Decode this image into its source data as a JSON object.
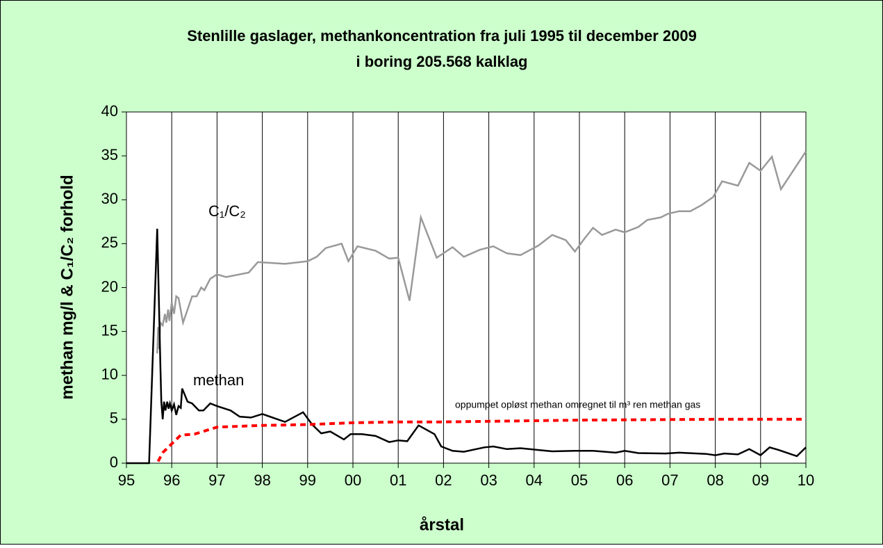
{
  "chart_data": {
    "type": "line",
    "title": [
      "Stenlille gaslager, methankoncentration fra juli 1995 til december 2009",
      "i boring 205.568 kalklag"
    ],
    "xlabel": "årstal",
    "ylabel": "methan mg/l & C₁/C₂ forhold",
    "xlim": [
      1995,
      2010
    ],
    "xticks": [
      {
        "value": 1995,
        "label": "95"
      },
      {
        "value": 1996,
        "label": "96"
      },
      {
        "value": 1997,
        "label": "97"
      },
      {
        "value": 1998,
        "label": "98"
      },
      {
        "value": 1999,
        "label": "99"
      },
      {
        "value": 2000,
        "label": "00"
      },
      {
        "value": 2001,
        "label": "01"
      },
      {
        "value": 2002,
        "label": "02"
      },
      {
        "value": 2003,
        "label": "03"
      },
      {
        "value": 2004,
        "label": "04"
      },
      {
        "value": 2005,
        "label": "05"
      },
      {
        "value": 2006,
        "label": "06"
      },
      {
        "value": 2007,
        "label": "07"
      },
      {
        "value": 2008,
        "label": "08"
      },
      {
        "value": 2009,
        "label": "09"
      },
      {
        "value": 2010,
        "label": "10"
      }
    ],
    "ylim": [
      0,
      40
    ],
    "yticks": [
      0,
      5,
      10,
      15,
      20,
      25,
      30,
      35,
      40
    ],
    "xgrid": true,
    "series": [
      {
        "name": "C₁/C₂",
        "color": "#999999",
        "dashed": false,
        "x": [
          1995.68,
          1995.7,
          1995.72,
          1995.75,
          1995.8,
          1995.85,
          1995.88,
          1995.92,
          1995.95,
          1996.0,
          1996.05,
          1996.1,
          1996.15,
          1996.25,
          1996.35,
          1996.45,
          1996.55,
          1996.65,
          1996.72,
          1996.85,
          1997.0,
          1997.2,
          1997.7,
          1997.9,
          1998.5,
          1999.0,
          1999.2,
          1999.4,
          1999.75,
          1999.9,
          2000.1,
          2000.5,
          2000.8,
          2001.0,
          2001.25,
          2001.5,
          2001.85,
          2002.2,
          2002.45,
          2002.8,
          2003.1,
          2003.4,
          2003.7,
          2004.1,
          2004.4,
          2004.7,
          2004.9,
          2005.1,
          2005.3,
          2005.5,
          2005.8,
          2006.0,
          2006.3,
          2006.5,
          2006.8,
          2006.95,
          2007.2,
          2007.45,
          2007.7,
          2007.95,
          2008.15,
          2008.5,
          2008.75,
          2009.0,
          2009.25,
          2009.45,
          2010.0
        ],
        "values": [
          12.5,
          15.5,
          13,
          16,
          15.7,
          17,
          16,
          17.5,
          16.2,
          18.3,
          17,
          19,
          18.8,
          16,
          17.5,
          19,
          19,
          20,
          19.7,
          21,
          21.5,
          21.2,
          21.7,
          22.9,
          22.7,
          23,
          23.5,
          24.5,
          25,
          23,
          24.7,
          24.2,
          23.3,
          23.4,
          18.5,
          28,
          23.4,
          24.6,
          23.5,
          24.3,
          24.7,
          23.9,
          23.7,
          24.8,
          26,
          25.4,
          24.1,
          25.5,
          26.8,
          26,
          26.6,
          26.3,
          26.9,
          27.7,
          28,
          28.4,
          28.7,
          28.7,
          29.4,
          30.3,
          32.1,
          31.6,
          34.2,
          33.3,
          34.9,
          31.2,
          35.5
        ]
      },
      {
        "name": "methan",
        "color": "#000000",
        "dashed": false,
        "x": [
          1995.0,
          1995.5,
          1995.68,
          1995.75,
          1995.77,
          1995.8,
          1995.83,
          1995.86,
          1995.9,
          1995.93,
          1995.96,
          1996.0,
          1996.05,
          1996.1,
          1996.15,
          1996.2,
          1996.23,
          1996.35,
          1996.45,
          1996.6,
          1996.7,
          1996.85,
          1997.0,
          1997.3,
          1997.5,
          1997.75,
          1998.0,
          1998.5,
          1998.9,
          1999.1,
          1999.3,
          1999.5,
          1999.8,
          1999.95,
          2000.2,
          2000.5,
          2000.8,
          2001.0,
          2001.2,
          2001.45,
          2001.8,
          2001.95,
          2002.2,
          2002.45,
          2002.9,
          2003.1,
          2003.4,
          2003.7,
          2004.1,
          2004.4,
          2004.9,
          2005.3,
          2005.8,
          2006.0,
          2006.3,
          2006.9,
          2007.2,
          2007.8,
          2008.0,
          2008.2,
          2008.5,
          2008.75,
          2009.0,
          2009.2,
          2009.4,
          2009.8,
          2010.0
        ],
        "values": [
          0,
          0,
          26.7,
          11,
          7,
          5,
          7,
          6,
          7,
          6.2,
          6.8,
          6,
          6.7,
          5.5,
          6.5,
          6.3,
          8.5,
          7,
          6.8,
          6,
          6,
          6.8,
          6.5,
          6,
          5.3,
          5.2,
          5.6,
          4.7,
          5.8,
          4.4,
          3.4,
          3.6,
          2.7,
          3.3,
          3.3,
          3.1,
          2.4,
          2.6,
          2.5,
          4.3,
          3.3,
          1.9,
          1.4,
          1.3,
          1.8,
          1.9,
          1.6,
          1.7,
          1.5,
          1.35,
          1.4,
          1.4,
          1.2,
          1.4,
          1.15,
          1.1,
          1.2,
          1.05,
          0.9,
          1.1,
          1.0,
          1.6,
          0.9,
          1.8,
          1.5,
          0.8,
          1.8
        ]
      },
      {
        "name": "oppumpet opløst methan omregnet til m³ ren methan gas",
        "color": "#ff0000",
        "dashed": true,
        "x": [
          1995.7,
          1995.8,
          1996.0,
          1996.2,
          1996.5,
          1997.0,
          1998.0,
          1999.0,
          2000.0,
          2001.0,
          2002.0,
          2005.0,
          2008.0,
          2010.0
        ],
        "values": [
          0.2,
          1.2,
          2.2,
          3.2,
          3.3,
          4.1,
          4.3,
          4.4,
          4.6,
          4.7,
          4.7,
          4.9,
          5.0,
          5.0
        ]
      }
    ]
  }
}
